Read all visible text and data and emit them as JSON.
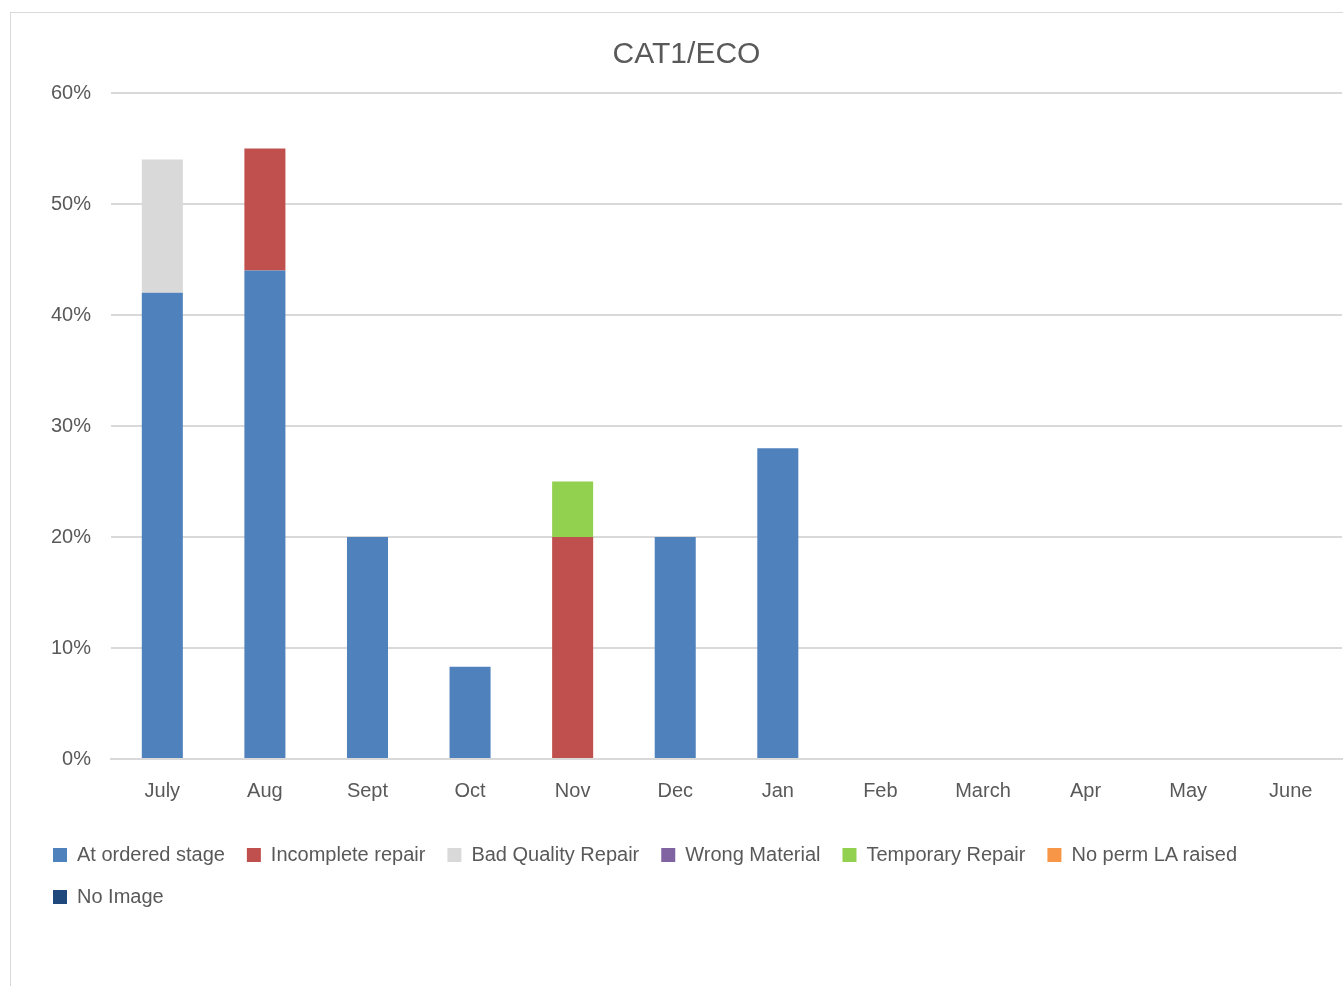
{
  "chart_data": {
    "type": "bar",
    "title": "CAT1/ECO",
    "stacked": true,
    "categories": [
      "July",
      "Aug",
      "Sept",
      "Oct",
      "Nov",
      "Dec",
      "Jan",
      "Feb",
      "March",
      "Apr",
      "May",
      "June"
    ],
    "series": [
      {
        "name": "At ordered stage",
        "color": "#4f81bd",
        "values": [
          42,
          44,
          20,
          8.3,
          0,
          20,
          28,
          null,
          null,
          null,
          null,
          null
        ]
      },
      {
        "name": "Incomplete repair",
        "color": "#c0504d",
        "values": [
          0,
          11,
          0,
          0,
          20,
          0,
          0,
          null,
          null,
          null,
          null,
          null
        ]
      },
      {
        "name": "Bad Quality Repair",
        "color": "#d9d9d9",
        "values": [
          12,
          0,
          0,
          0,
          0,
          0,
          0,
          null,
          null,
          null,
          null,
          null
        ]
      },
      {
        "name": "Wrong Material",
        "color": "#8064a2",
        "values": [
          0,
          0,
          0,
          0,
          0,
          0,
          0,
          null,
          null,
          null,
          null,
          null
        ]
      },
      {
        "name": "Temporary Repair",
        "color": "#92d050",
        "values": [
          0,
          0,
          0,
          0,
          5,
          0,
          0,
          null,
          null,
          null,
          null,
          null
        ]
      },
      {
        "name": "No perm LA raised",
        "color": "#f79646",
        "values": [
          0,
          0,
          0,
          0,
          0,
          0,
          0,
          null,
          null,
          null,
          null,
          null
        ]
      },
      {
        "name": "No Image",
        "color": "#1f497d",
        "values": [
          0,
          0,
          0,
          0,
          0,
          0,
          0,
          null,
          null,
          null,
          null,
          null
        ]
      }
    ],
    "ylim": [
      0,
      60
    ],
    "yticks": [
      {
        "value": 0,
        "label": "0%"
      },
      {
        "value": 10,
        "label": "10%"
      },
      {
        "value": 20,
        "label": "20%"
      },
      {
        "value": 30,
        "label": "30%"
      },
      {
        "value": 40,
        "label": "40%"
      },
      {
        "value": 50,
        "label": "50%"
      },
      {
        "value": 60,
        "label": "60%"
      }
    ],
    "grid": "y",
    "legend": "bottom"
  }
}
